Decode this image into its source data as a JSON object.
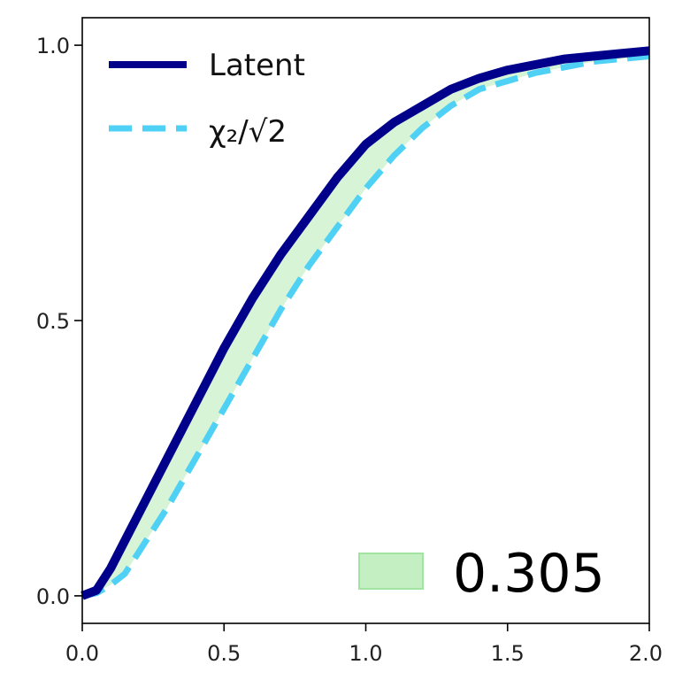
{
  "chart_data": {
    "type": "line",
    "title": "",
    "xlabel": "",
    "ylabel": "",
    "xlim": [
      0.0,
      2.0
    ],
    "ylim": [
      -0.05,
      1.05
    ],
    "x_ticks": [
      "0.0",
      "0.5",
      "1.0",
      "1.5",
      "2.0"
    ],
    "y_ticks": [
      "0.0",
      "0.5",
      "1.0"
    ],
    "grid": false,
    "legend": {
      "placement": "top-left",
      "entries": [
        "Latent",
        "χ₂/√2"
      ]
    },
    "fill_between": {
      "color": "#c6f0c6",
      "label": "0.305"
    },
    "colors": {
      "latent": "#00008b",
      "chi": "#4fd0f5",
      "fill": "#d7f4d7",
      "fill_patch": "#c3efc3"
    },
    "series": [
      {
        "name": "Latent",
        "style": "solid",
        "x": [
          0.0,
          0.05,
          0.1,
          0.15,
          0.2,
          0.3,
          0.4,
          0.5,
          0.6,
          0.7,
          0.8,
          0.9,
          1.0,
          1.1,
          1.2,
          1.3,
          1.4,
          1.5,
          1.6,
          1.7,
          1.8,
          1.9,
          2.0
        ],
        "values": [
          0.0,
          0.01,
          0.05,
          0.1,
          0.15,
          0.25,
          0.35,
          0.45,
          0.54,
          0.62,
          0.69,
          0.76,
          0.82,
          0.86,
          0.89,
          0.92,
          0.94,
          0.955,
          0.965,
          0.975,
          0.98,
          0.985,
          0.99
        ]
      },
      {
        "name": "χ₂/√2",
        "style": "dashed",
        "x": [
          0.0,
          0.05,
          0.1,
          0.15,
          0.2,
          0.3,
          0.4,
          0.5,
          0.6,
          0.7,
          0.8,
          0.9,
          1.0,
          1.1,
          1.2,
          1.3,
          1.4,
          1.5,
          1.6,
          1.7,
          1.8,
          1.9,
          2.0
        ],
        "values": [
          0.0,
          0.005,
          0.02,
          0.04,
          0.08,
          0.16,
          0.25,
          0.34,
          0.43,
          0.52,
          0.6,
          0.67,
          0.74,
          0.8,
          0.85,
          0.89,
          0.92,
          0.935,
          0.95,
          0.96,
          0.97,
          0.975,
          0.98
        ]
      }
    ]
  }
}
